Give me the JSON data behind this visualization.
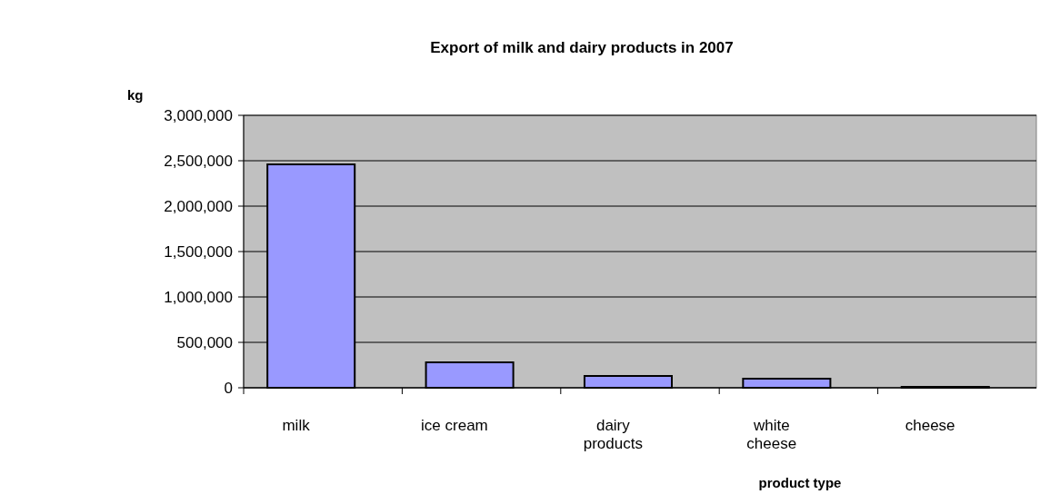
{
  "chart_data": {
    "type": "bar",
    "title": "Export of milk and dairy products in 2007",
    "xlabel": "product type",
    "ylabel": "kg",
    "categories": [
      "milk",
      "ice cream",
      "dairy products",
      "white cheese",
      "cheese"
    ],
    "values": [
      2460000,
      280000,
      130000,
      100000,
      10000
    ],
    "color": "#9999ff",
    "ylim": [
      0,
      3000000
    ],
    "yticks": [
      {
        "value": 0,
        "label": "0"
      },
      {
        "value": 500000,
        "label": "500,000"
      },
      {
        "value": 1000000,
        "label": "1,000,000"
      },
      {
        "value": 1500000,
        "label": "1,500,000"
      },
      {
        "value": 2000000,
        "label": "2,000,000"
      },
      {
        "value": 2500000,
        "label": "2,500,000"
      },
      {
        "value": 3000000,
        "label": "3,000,000"
      }
    ],
    "grid": "y"
  }
}
